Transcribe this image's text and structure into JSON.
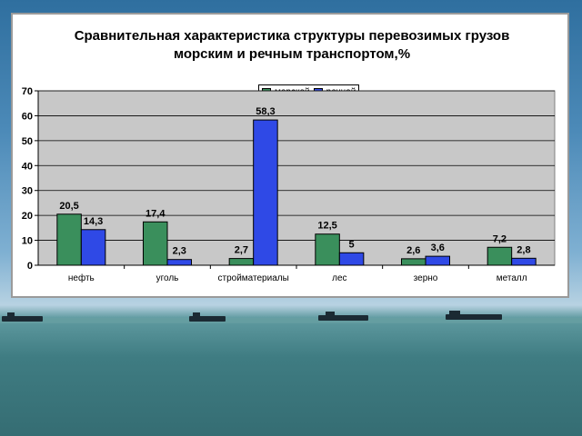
{
  "background": {
    "scene": "sea-with-ships"
  },
  "chart_data": {
    "type": "bar",
    "title_line1": "Сравнительная характеристика структуры перевозимых грузов",
    "title_line2": "морским и речным транспортом,%",
    "categories": [
      "нефть",
      "уголь",
      "стройматериалы",
      "лес",
      "зерно",
      "металл"
    ],
    "series": [
      {
        "name": "морской",
        "color": "#3a8f5c",
        "values": [
          20.5,
          17.4,
          2.7,
          12.5,
          2.6,
          7.2
        ],
        "labels": [
          "20,5",
          "17,4",
          "2,7",
          "12,5",
          "2,6",
          "7,2"
        ]
      },
      {
        "name": "речной",
        "color": "#2f49e6",
        "values": [
          14.3,
          2.3,
          58.3,
          5,
          3.6,
          2.8
        ],
        "labels": [
          "14,3",
          "2,3",
          "58,3",
          "5",
          "3,6",
          "2,8"
        ]
      }
    ],
    "ylim": [
      0,
      70
    ],
    "yticks": [
      0,
      10,
      20,
      30,
      40,
      50,
      60,
      70
    ],
    "grid": true,
    "legend_position": "top-center",
    "plot_background": "#c8c8c8"
  }
}
